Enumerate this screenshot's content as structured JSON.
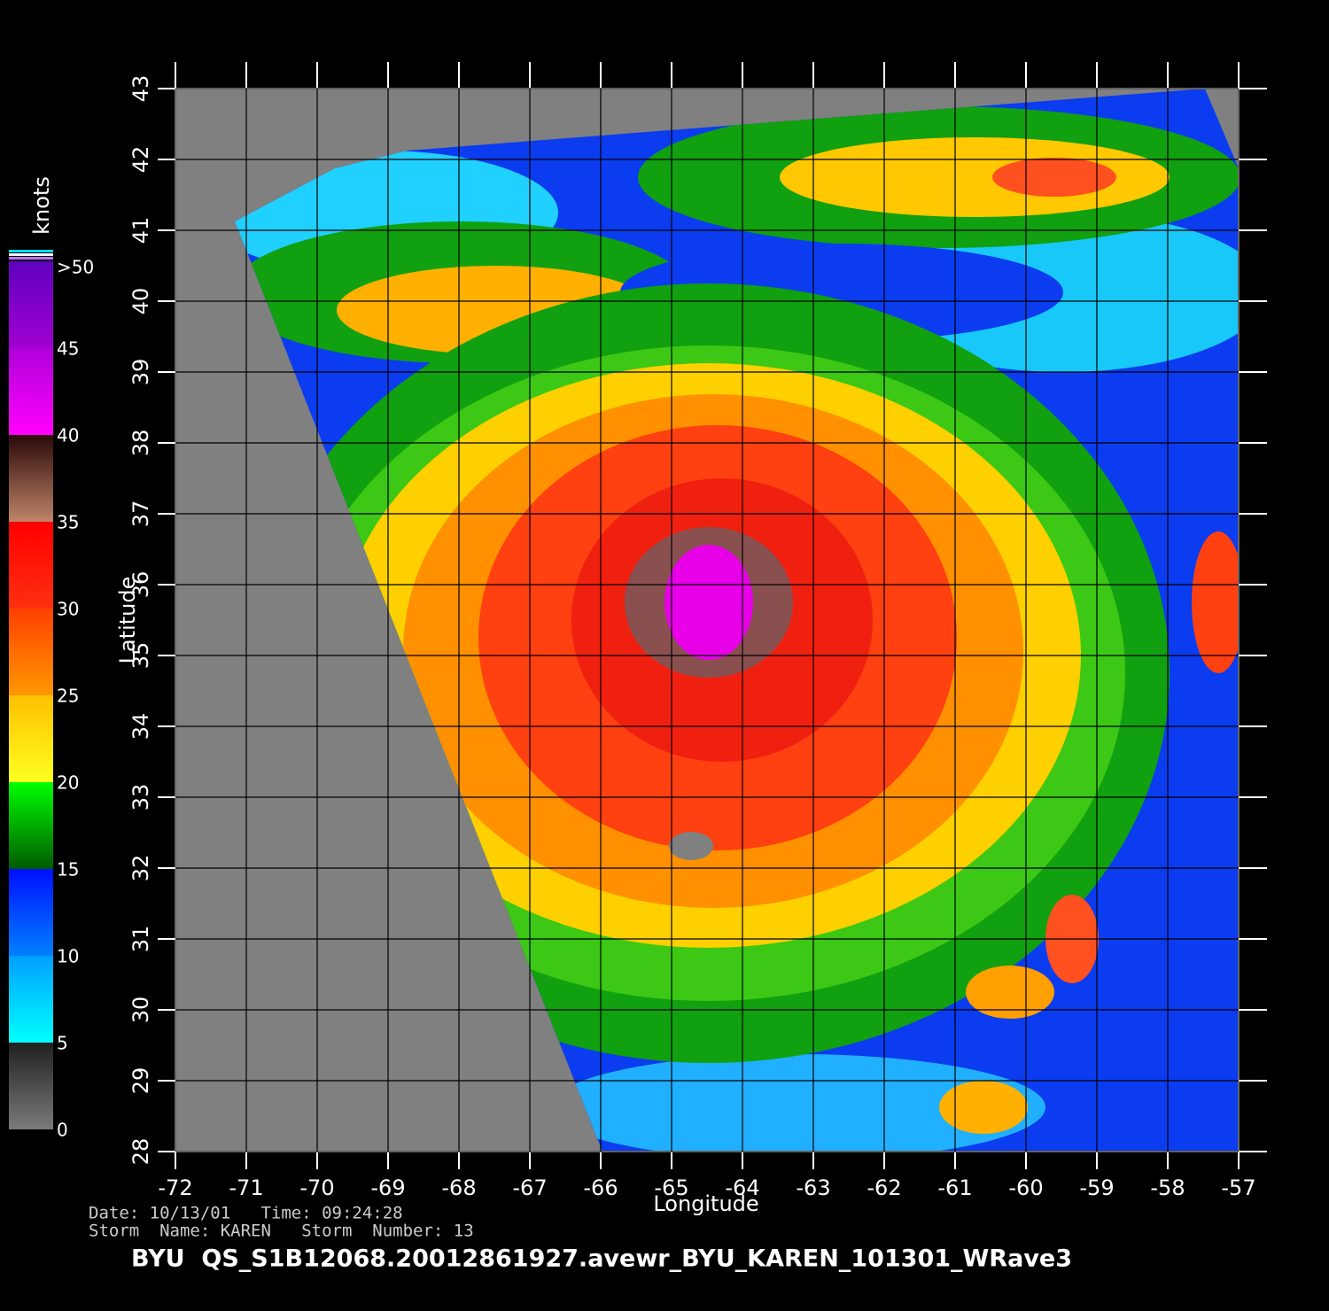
{
  "chart_data": {
    "type": "map",
    "xlabel": "Longitude",
    "ylabel": "Latitude",
    "xlim": [
      -72,
      -57
    ],
    "ylim": [
      28,
      43
    ],
    "xticks": [
      -72,
      -71,
      -70,
      -69,
      -68,
      -67,
      -66,
      -65,
      -64,
      -63,
      -62,
      -61,
      -60,
      -59,
      -58,
      -57
    ],
    "yticks": [
      28,
      29,
      30,
      31,
      32,
      33,
      34,
      35,
      36,
      37,
      38,
      39,
      40,
      41,
      42,
      43
    ],
    "grid": true,
    "colorbar": {
      "label": "knots",
      "clim": [
        0,
        50
      ],
      "ticks": [
        0,
        5,
        10,
        15,
        20,
        25,
        30,
        35,
        40,
        45,
        {
          "value": 50,
          "label": ">50"
        }
      ],
      "colors": [
        [
          "#7a7a7a",
          "#202020"
        ],
        [
          "#00ffff",
          "#00a0ff"
        ],
        [
          "#0080ff",
          "#0010ff"
        ],
        [
          "#005a00",
          "#00ff00"
        ],
        [
          "#ffff20",
          "#ffc000"
        ],
        [
          "#ff9800",
          "#ff4000"
        ],
        [
          "#ff3010",
          "#ff0000"
        ],
        [
          "#c08468",
          "#2a0808"
        ],
        [
          "#ff00ff",
          "#b000d8"
        ],
        [
          "#a000d0",
          "#6000c0"
        ]
      ]
    },
    "info": [
      "Date: 10/13/01   Time: 09:24:28",
      "Storm  Name: KAREN   Storm  Number: 13"
    ],
    "footer": "BYU  QS_S1B12068.20012861927.avewr_BYU_KAREN_101301_WRave3"
  }
}
